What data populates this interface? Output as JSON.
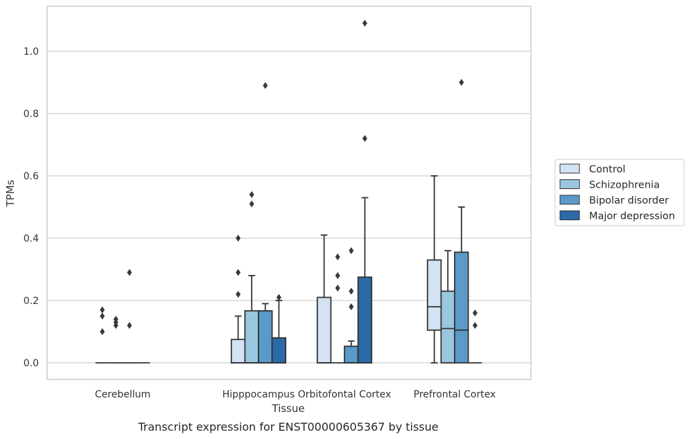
{
  "chart_data": {
    "type": "box",
    "xlabel": "Tissue",
    "ylabel": "TPMs",
    "caption": "Transcript expression for ENST00000605367 by tissue",
    "ylim": [
      -0.053,
      1.147
    ],
    "yticks": [
      "0.0",
      "0.2",
      "0.4",
      "0.6",
      "0.8",
      "1.0"
    ],
    "ytick_values": [
      0.0,
      0.2,
      0.4,
      0.6,
      0.8,
      1.0
    ],
    "grid": "horizontal",
    "legend_position": "right",
    "categories": [
      "Cerebellum",
      "Hipppocampus",
      "Orbitofontal Cortex",
      "Prefrontal Cortex"
    ],
    "series": [
      {
        "name": "Control",
        "color": "#d3e3f3",
        "boxes": [
          {
            "q1": 0.0,
            "median": 0.0,
            "q3": 0.0,
            "whisker_low": 0.0,
            "whisker_high": 0.0,
            "outliers": [
              0.17,
              0.15,
              0.1
            ]
          },
          {
            "q1": 0.0,
            "median": 0.0,
            "q3": 0.075,
            "whisker_low": 0.0,
            "whisker_high": 0.15,
            "outliers": [
              0.4,
              0.29,
              0.22
            ]
          },
          {
            "q1": 0.0,
            "median": 0.0,
            "q3": 0.21,
            "whisker_low": 0.0,
            "whisker_high": 0.41,
            "outliers": []
          },
          {
            "q1": 0.105,
            "median": 0.18,
            "q3": 0.33,
            "whisker_low": 0.0,
            "whisker_high": 0.6,
            "outliers": []
          }
        ]
      },
      {
        "name": "Schizophrenia",
        "color": "#9ac6df",
        "boxes": [
          {
            "q1": 0.0,
            "median": 0.0,
            "q3": 0.0,
            "whisker_low": 0.0,
            "whisker_high": 0.0,
            "outliers": [
              0.14,
              0.13,
              0.12
            ]
          },
          {
            "q1": 0.0,
            "median": 0.0,
            "q3": 0.167,
            "whisker_low": 0.0,
            "whisker_high": 0.28,
            "outliers": [
              0.54,
              0.51
            ]
          },
          {
            "q1": 0.0,
            "median": 0.0,
            "q3": 0.0,
            "whisker_low": 0.0,
            "whisker_high": 0.0,
            "outliers": [
              0.34,
              0.28,
              0.24
            ]
          },
          {
            "q1": 0.0,
            "median": 0.11,
            "q3": 0.23,
            "whisker_low": 0.0,
            "whisker_high": 0.36,
            "outliers": []
          }
        ]
      },
      {
        "name": "Bipolar disorder",
        "color": "#5a9ac8",
        "boxes": [
          {
            "q1": 0.0,
            "median": 0.0,
            "q3": 0.0,
            "whisker_low": 0.0,
            "whisker_high": 0.0,
            "outliers": [
              0.29,
              0.12
            ]
          },
          {
            "q1": 0.0,
            "median": 0.0,
            "q3": 0.167,
            "whisker_low": 0.0,
            "whisker_high": 0.19,
            "outliers": [
              0.89
            ]
          },
          {
            "q1": 0.0,
            "median": 0.0,
            "q3": 0.053,
            "whisker_low": 0.0,
            "whisker_high": 0.07,
            "outliers": [
              0.36,
              0.23,
              0.18
            ]
          },
          {
            "q1": 0.0,
            "median": 0.105,
            "q3": 0.355,
            "whisker_low": 0.0,
            "whisker_high": 0.5,
            "outliers": [
              0.9
            ]
          }
        ]
      },
      {
        "name": "Major depression",
        "color": "#2a6aa8",
        "boxes": [
          {
            "q1": 0.0,
            "median": 0.0,
            "q3": 0.0,
            "whisker_low": 0.0,
            "whisker_high": 0.0,
            "outliers": []
          },
          {
            "q1": 0.0,
            "median": 0.0,
            "q3": 0.08,
            "whisker_low": 0.0,
            "whisker_high": 0.2,
            "outliers": [
              0.21
            ]
          },
          {
            "q1": 0.0,
            "median": 0.0,
            "q3": 0.275,
            "whisker_low": 0.0,
            "whisker_high": 0.53,
            "outliers": [
              1.09,
              0.72
            ]
          },
          {
            "q1": 0.0,
            "median": 0.0,
            "q3": 0.0,
            "whisker_low": 0.0,
            "whisker_high": 0.0,
            "outliers": [
              0.16,
              0.12
            ]
          }
        ]
      }
    ]
  }
}
